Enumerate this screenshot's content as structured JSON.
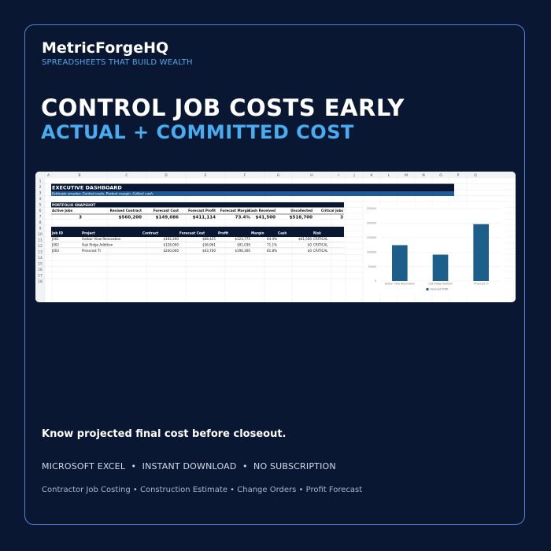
{
  "brand": {
    "name": "MetricForgeHQ",
    "tagline": "SPREADSHEETS THAT BUILD WEALTH"
  },
  "headline": "CONTROL JOB COSTS EARLY",
  "subheadline": "ACTUAL + COMMITTED COST",
  "spreadsheet": {
    "columns": [
      "A",
      "B",
      "C",
      "D",
      "E",
      "F",
      "G",
      "H",
      "I",
      "J",
      "K",
      "L",
      "M",
      "N",
      "O",
      "P",
      "Q"
    ],
    "rows": [
      "1",
      "2",
      "3",
      "4",
      "5",
      "6",
      "7",
      "8",
      "9",
      "10",
      "11",
      "12",
      "13",
      "14",
      "15",
      "16",
      "17",
      "18"
    ],
    "title": "EXECUTIVE DASHBOARD",
    "subtitle": "Estimate smarter. Control costs. Protect margin. Collect cash.",
    "section_label": "PORTFOLIO SNAPSHOT",
    "snapshot_headers": [
      "Active Jobs",
      "Revised Contract",
      "Forecast Cost",
      "Forecast Profit",
      "Forecast Margin",
      "Cash Received",
      "Uncollected",
      "Critical Jobs"
    ],
    "snapshot_values": [
      "3",
      "$560,200",
      "$149,086",
      "$411,114",
      "73.4%",
      "$41,500",
      "$518,700",
      "3"
    ],
    "job_headers": [
      "Job ID",
      "Project",
      "Contract",
      "Forecast Cost",
      "Profit",
      "Margin",
      "Cash",
      "Risk"
    ],
    "jobs": [
      [
        "J001",
        "Harbor View Renovation",
        "$192,200",
        "$68,425",
        "$123,775",
        "64.4%",
        "$41,500",
        "CRITICAL"
      ],
      [
        "J002",
        "Oak Ridge Addition",
        "$128,000",
        "$36,961",
        "$91,039",
        "71.1%",
        "$0",
        "CRITICAL"
      ],
      [
        "J003",
        "Pinecrest TI",
        "$240,000",
        "$43,700",
        "$196,300",
        "81.8%",
        "$0",
        "CRITICAL"
      ]
    ]
  },
  "chart_data": {
    "type": "bar",
    "categories": [
      "Harbor View Renovation",
      "Oak Ridge Addition",
      "Pinecrest TI"
    ],
    "series": [
      {
        "name": "Forecast Profit",
        "values": [
          123775,
          91039,
          196300
        ]
      }
    ],
    "yticks": [
      "0",
      "50000",
      "100000",
      "150000",
      "200000",
      "250000"
    ],
    "ylim": [
      0,
      250000
    ],
    "legend": "bottom",
    "color": "#1b5f8a"
  },
  "benefit": "Know projected final cost before closeout.",
  "features": "MICROSOFT EXCEL  •  INSTANT DOWNLOAD  •  NO SUBSCRIPTION",
  "keywords": "Contractor Job Costing • Construction Estimate • Change Orders • Profit Forecast"
}
